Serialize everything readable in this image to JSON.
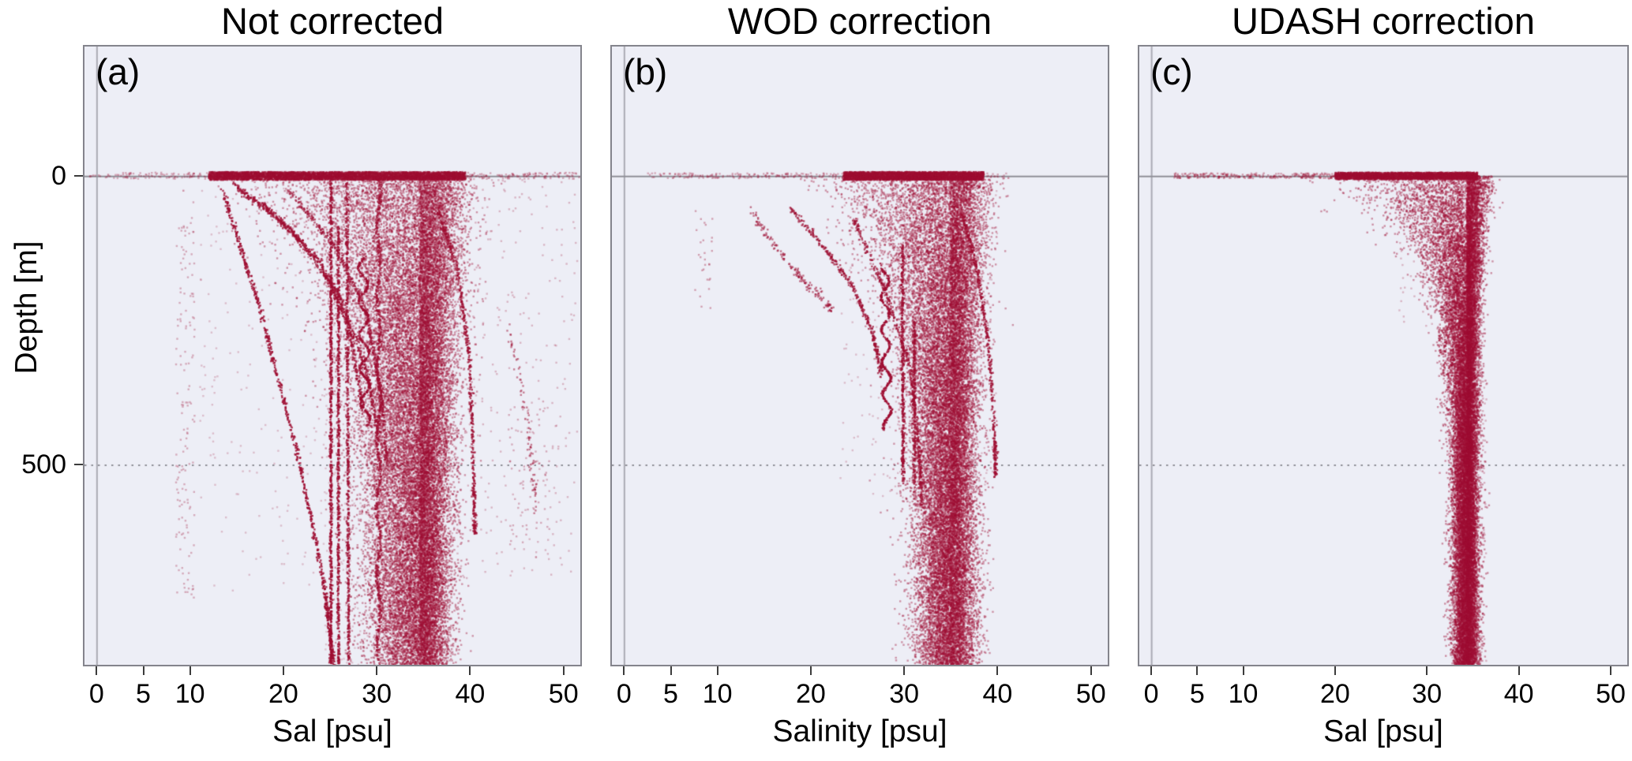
{
  "figure": {
    "ylabel": "Depth [m]",
    "panels": [
      {
        "id": "a",
        "title": "Not corrected",
        "label": "(a)",
        "xlabel": "Sal [psu]"
      },
      {
        "id": "b",
        "title": "WOD correction",
        "label": "(b)",
        "xlabel": "Salinity [psu]"
      },
      {
        "id": "c",
        "title": "UDASH correction",
        "label": "(c)",
        "xlabel": "Sal [psu]"
      }
    ],
    "colors": {
      "point": "#9d0d31",
      "panel_bg": "#edeef6",
      "panel_border": "#84848c",
      "grid": "#8f8f97"
    }
  },
  "chart_data": [
    {
      "type": "scatter",
      "panel": "a",
      "title": "Not corrected",
      "xlabel": "Sal [psu]",
      "ylabel": "Depth [m]",
      "y_axis_note": "depth increases downward",
      "xlim": [
        -1.3,
        51.8
      ],
      "ylim": [
        -224,
        846
      ],
      "xticks": [
        0,
        5,
        10,
        20,
        30,
        40,
        50
      ],
      "yticks": [
        0,
        500
      ],
      "show_yticks": true,
      "point_color": "#9d0d31",
      "grid": {
        "vline_x": 0,
        "vline_color": "#aaaab3",
        "hline_solid_depth": 0,
        "hline_dotted_depth": 500,
        "hline_color": "#8f8f97"
      },
      "clusters": [
        {
          "kind": "box",
          "x": [
            8.5,
            10.5
          ],
          "depth": [
            40,
            730
          ],
          "n": 150,
          "alpha": 0.3
        },
        {
          "kind": "box",
          "x": [
            11,
            24
          ],
          "depth": [
            15,
            720
          ],
          "n": 170,
          "alpha": 0.22
        },
        {
          "kind": "box",
          "x": [
            38,
            51.5
          ],
          "depth": [
            5,
            700
          ],
          "n": 280,
          "alpha": 0.25
        },
        {
          "kind": "box",
          "x": [
            24,
            31
          ],
          "depth": [
            0,
            846
          ],
          "n": 350,
          "alpha": 0.2
        },
        {
          "kind": "box",
          "x": [
            44,
            48.5
          ],
          "depth": [
            380,
            640
          ],
          "n": 70,
          "alpha": 0.3
        },
        {
          "kind": "hband",
          "x": [
            -0.8,
            52
          ],
          "depth": [
            -6,
            5
          ],
          "n": 500,
          "alpha": 0.3
        },
        {
          "kind": "hband",
          "x": [
            12,
            39.5
          ],
          "depth": [
            -7,
            7
          ],
          "n": 5200,
          "alpha": 0.45
        },
        {
          "kind": "funnel",
          "xc": 34.6,
          "left0": 8.0,
          "left1": 2.6,
          "right0": 2.6,
          "right1": 1.6,
          "tau": 210,
          "depth": [
            0,
            846
          ],
          "n": 26000,
          "alpha": 0.4
        },
        {
          "kind": "path",
          "pts": [
            [
              25.1,
              0
            ],
            [
              25.1,
              846
            ]
          ],
          "n": 700,
          "alpha": 0.8,
          "jitter": 0.07
        },
        {
          "kind": "path",
          "pts": [
            [
              25.9,
              90
            ],
            [
              25.9,
              846
            ]
          ],
          "n": 600,
          "alpha": 0.75,
          "jitter": 0.07
        },
        {
          "kind": "path",
          "pts": [
            [
              26.8,
              0
            ],
            [
              27.0,
              846
            ]
          ],
          "n": 600,
          "alpha": 0.7,
          "jitter": 0.08
        },
        {
          "kind": "path",
          "pts": [
            [
              13.5,
              25
            ],
            [
              17.5,
              230
            ],
            [
              21.5,
              480
            ],
            [
              24.3,
              700
            ],
            [
              25.4,
              846
            ]
          ],
          "n": 650,
          "alpha": 0.8,
          "jitter": 0.1
        },
        {
          "kind": "path",
          "pts": [
            [
              14.6,
              15
            ],
            [
              19.5,
              75
            ],
            [
              24,
              150
            ],
            [
              27,
              260
            ],
            [
              28.6,
              410
            ]
          ],
          "n": 420,
          "alpha": 0.75,
          "jitter": 0.1
        },
        {
          "kind": "path",
          "pts": [
            [
              17.6,
              45
            ],
            [
              22,
              115
            ],
            [
              26,
              205
            ],
            [
              29,
              340
            ],
            [
              30.2,
              450
            ]
          ],
          "n": 380,
          "alpha": 0.7,
          "jitter": 0.1
        },
        {
          "kind": "path",
          "pts": [
            [
              20.5,
              25
            ],
            [
              25.5,
              120
            ],
            [
              28.8,
              230
            ],
            [
              30.6,
              390
            ],
            [
              31.1,
              500
            ]
          ],
          "n": 380,
          "alpha": 0.65,
          "jitter": 0.1
        },
        {
          "kind": "path",
          "pts": [
            [
              28.5,
              140
            ],
            [
              28.8,
              430
            ]
          ],
          "n": 350,
          "alpha": 0.8,
          "jitter": 0.06,
          "wiggle_amp": 0.5,
          "wiggle_period": 58
        },
        {
          "kind": "path",
          "pts": [
            [
              30.2,
              0
            ],
            [
              30.2,
              846
            ]
          ],
          "n": 650,
          "alpha": 0.7,
          "jitter": 0.1,
          "wiggle_amp": 0.18,
          "wiggle_period": 120
        },
        {
          "kind": "path",
          "pts": [
            [
              36.6,
              60
            ],
            [
              38.6,
              160
            ],
            [
              39.9,
              310
            ],
            [
              40.4,
              520
            ],
            [
              40.5,
              620
            ]
          ],
          "n": 450,
          "alpha": 0.75,
          "jitter": 0.09
        },
        {
          "kind": "path",
          "pts": [
            [
              44.2,
              270
            ],
            [
              46.3,
              430
            ],
            [
              47.0,
              570
            ]
          ],
          "n": 90,
          "alpha": 0.5,
          "jitter": 0.15,
          "djitter": 8
        }
      ]
    },
    {
      "type": "scatter",
      "panel": "b",
      "title": "WOD correction",
      "xlabel": "Salinity [psu]",
      "ylabel": "Depth [m]",
      "y_axis_note": "depth increases downward",
      "xlim": [
        -1.3,
        51.8
      ],
      "ylim": [
        -224,
        846
      ],
      "xticks": [
        0,
        5,
        10,
        20,
        30,
        40,
        50
      ],
      "yticks": [
        0,
        500
      ],
      "show_yticks": false,
      "point_color": "#9d0d31",
      "grid": {
        "vline_x": 0,
        "vline_color": "#aaaab3",
        "hline_solid_depth": 0,
        "hline_dotted_depth": 500,
        "hline_color": "#8f8f97"
      },
      "clusters": [
        {
          "kind": "box",
          "x": [
            7.6,
            9.5
          ],
          "depth": [
            60,
            230
          ],
          "n": 28,
          "alpha": 0.35
        },
        {
          "kind": "box",
          "x": [
            23,
            40
          ],
          "depth": [
            0,
            560
          ],
          "n": 280,
          "alpha": 0.22
        },
        {
          "kind": "box",
          "x": [
            30.5,
            37.5
          ],
          "depth": [
            540,
            846
          ],
          "n": 160,
          "alpha": 0.25
        },
        {
          "kind": "hband",
          "x": [
            2.5,
            41
          ],
          "depth": [
            -5,
            4
          ],
          "n": 320,
          "alpha": 0.3
        },
        {
          "kind": "hband",
          "x": [
            23.5,
            38.5
          ],
          "depth": [
            -7,
            7
          ],
          "n": 3600,
          "alpha": 0.45
        },
        {
          "kind": "funnel",
          "xc": 34.9,
          "left0": 6.2,
          "left1": 1.7,
          "right0": 2.1,
          "right1": 1.4,
          "tau": 180,
          "depth": [
            0,
            846
          ],
          "n": 23000,
          "alpha": 0.4
        },
        {
          "kind": "path",
          "pts": [
            [
              13.6,
              60
            ],
            [
              16.5,
              130
            ],
            [
              19.5,
              185
            ],
            [
              22.5,
              235
            ]
          ],
          "n": 160,
          "alpha": 0.55,
          "jitter": 0.12,
          "djitter": 5
        },
        {
          "kind": "path",
          "pts": [
            [
              17.8,
              55
            ],
            [
              21.5,
              125
            ],
            [
              24.6,
              195
            ],
            [
              26.6,
              270
            ],
            [
              27.6,
              345
            ]
          ],
          "n": 320,
          "alpha": 0.7,
          "jitter": 0.1
        },
        {
          "kind": "path",
          "pts": [
            [
              27.9,
              150
            ],
            [
              28.2,
              440
            ]
          ],
          "n": 330,
          "alpha": 0.8,
          "jitter": 0.06,
          "wiggle_amp": 0.45,
          "wiggle_period": 56
        },
        {
          "kind": "path",
          "pts": [
            [
              29.8,
              120
            ],
            [
              29.9,
              530
            ]
          ],
          "n": 380,
          "alpha": 0.75,
          "jitter": 0.08
        },
        {
          "kind": "path",
          "pts": [
            [
              24.6,
              75
            ],
            [
              28,
              200
            ],
            [
              30.6,
              330
            ],
            [
              31.6,
              470
            ],
            [
              31.9,
              570
            ]
          ],
          "n": 380,
          "alpha": 0.7,
          "jitter": 0.1
        },
        {
          "kind": "path",
          "pts": [
            [
              31.1,
              250
            ],
            [
              31.1,
              545
            ]
          ],
          "n": 260,
          "alpha": 0.7,
          "jitter": 0.08
        },
        {
          "kind": "path",
          "pts": [
            [
              36.3,
              70
            ],
            [
              37.9,
              170
            ],
            [
              39.1,
              300
            ],
            [
              39.7,
              450
            ],
            [
              39.8,
              520
            ]
          ],
          "n": 380,
          "alpha": 0.75,
          "jitter": 0.09
        }
      ]
    },
    {
      "type": "scatter",
      "panel": "c",
      "title": "UDASH correction",
      "xlabel": "Sal [psu]",
      "ylabel": "Depth [m]",
      "y_axis_note": "depth increases downward",
      "xlim": [
        -1.3,
        51.8
      ],
      "ylim": [
        -224,
        846
      ],
      "xticks": [
        0,
        5,
        10,
        20,
        30,
        40,
        50
      ],
      "yticks": [
        0,
        500
      ],
      "show_yticks": false,
      "point_color": "#9d0d31",
      "grid": {
        "vline_x": 0,
        "vline_color": "#aaaab3",
        "hline_solid_depth": 0,
        "hline_dotted_depth": 500,
        "hline_color": "#8f8f97"
      },
      "clusters": [
        {
          "kind": "hband",
          "x": [
            2.5,
            20
          ],
          "depth": [
            -5,
            4
          ],
          "n": 260,
          "alpha": 0.35
        },
        {
          "kind": "hband",
          "x": [
            20,
            35.5
          ],
          "depth": [
            -6,
            6
          ],
          "n": 3200,
          "alpha": 0.45
        },
        {
          "kind": "box",
          "x": [
            27,
            33
          ],
          "depth": [
            25,
            260
          ],
          "n": 130,
          "alpha": 0.25
        },
        {
          "kind": "box",
          "x": [
            32.4,
            36.2
          ],
          "depth": [
            0,
            846
          ],
          "n": 320,
          "alpha": 0.22
        },
        {
          "kind": "box",
          "x": [
            35.2,
            36.5
          ],
          "depth": [
            350,
            846
          ],
          "n": 80,
          "alpha": 0.28
        },
        {
          "kind": "funnel",
          "xc": 34.35,
          "left0": 6.8,
          "left1": 0.75,
          "right0": 1.3,
          "right1": 0.6,
          "tau": 115,
          "depth": [
            0,
            846
          ],
          "n": 23000,
          "alpha": 0.42
        },
        {
          "kind": "box",
          "x": [
            31.3,
            32.2
          ],
          "depth": [
            262,
            312
          ],
          "n": 40,
          "alpha": 0.55
        },
        {
          "kind": "path",
          "pts": [
            [
              31.9,
              318
            ],
            [
              31.9,
              345
            ]
          ],
          "n": 14,
          "alpha": 0.5,
          "jitter": 0.1
        }
      ]
    }
  ]
}
